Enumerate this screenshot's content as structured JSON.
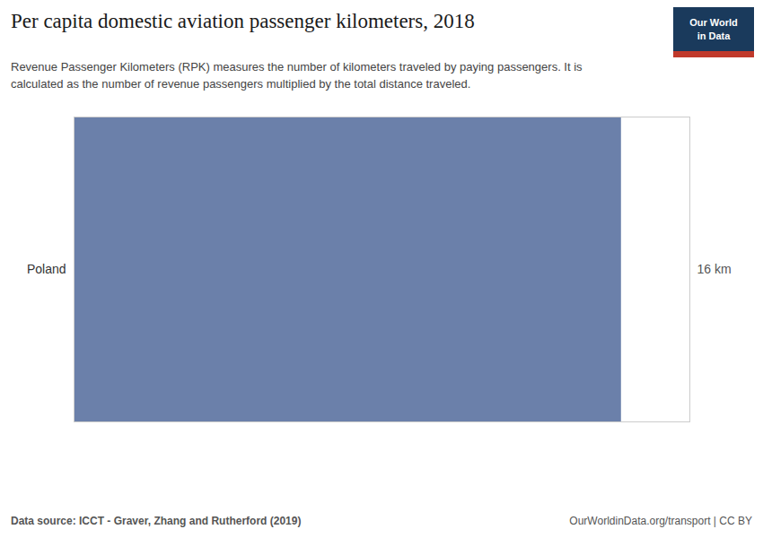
{
  "chart_data": {
    "type": "bar",
    "title": "Per capita domestic aviation passenger kilometers, 2018",
    "subtitle": "Revenue Passenger Kilometers (RPK) measures the number of kilometers traveled by paying passengers. It is\ncalculated as the number of revenue passengers multiplied by the total distance traveled.",
    "categories": [
      "Poland"
    ],
    "values": [
      16
    ],
    "value_labels": [
      "16 km"
    ],
    "color": "#6b80aa",
    "orientation": "horizontal",
    "xlim": [
      0,
      18
    ],
    "xticks": [],
    "grid": false,
    "data_labels": true,
    "tick_labels": "y",
    "annotations": [
      "Data source: ICCT - Graver, Zhang and Rutherford (2019)",
      "OurWorldinData.org/transport | CC BY",
      "Our World",
      "in Data"
    ]
  }
}
